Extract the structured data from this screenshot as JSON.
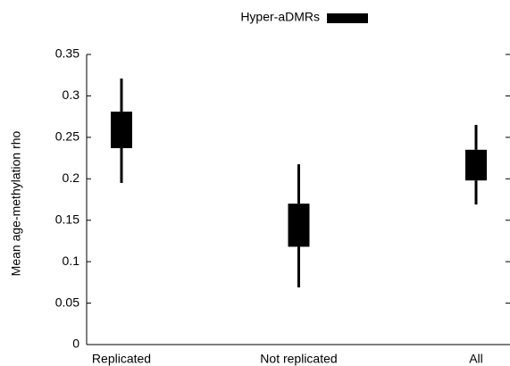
{
  "chart_data": {
    "type": "box",
    "ylabel": "Mean age-methylation rho",
    "categories": [
      "Replicated",
      "Not replicated",
      "All"
    ],
    "series": [
      {
        "name": "Hyper-aDMRs",
        "color": "#000000",
        "whisker_low": [
          0.195,
          0.069,
          0.169
        ],
        "box_low": [
          0.237,
          0.118,
          0.198
        ],
        "box_high": [
          0.281,
          0.17,
          0.235
        ],
        "whisker_high": [
          0.321,
          0.2175,
          0.265
        ]
      }
    ],
    "ylim": [
      0,
      0.35
    ],
    "yticks": [
      0,
      0.05,
      0.1,
      0.15,
      0.2,
      0.25,
      0.3,
      0.35
    ],
    "legend": "top"
  }
}
